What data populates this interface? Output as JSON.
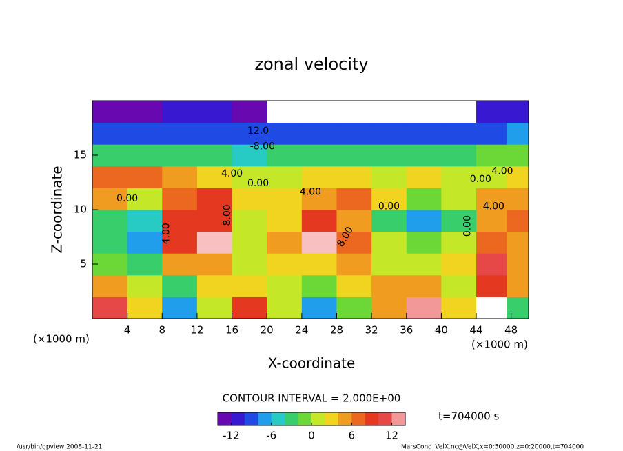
{
  "chart_data": {
    "type": "heatmap",
    "title": "zonal velocity",
    "x_label": "X-coordinate",
    "y_label": "Z-coordinate",
    "x_unit": "(×1000 m)",
    "y_unit": "(×1000 m)",
    "x": [
      2,
      6,
      10,
      14,
      18,
      22,
      26,
      30,
      34,
      38,
      42,
      46,
      49
    ],
    "y": [
      1,
      3,
      5,
      7,
      9,
      11,
      13,
      15,
      17,
      19
    ],
    "z": [
      [
        10,
        2,
        -8,
        0,
        8,
        0,
        -8,
        -2,
        4,
        12,
        2,
        -15,
        -4
      ],
      [
        4,
        0,
        -4,
        2,
        2,
        0,
        -2,
        2,
        4,
        4,
        0,
        8,
        4
      ],
      [
        -2,
        -4,
        4,
        4,
        0,
        2,
        2,
        4,
        0,
        0,
        2,
        10,
        4
      ],
      [
        -4,
        -8,
        8,
        14,
        0,
        4,
        14,
        6,
        0,
        -2,
        0,
        6,
        4
      ],
      [
        -4,
        -6,
        8,
        8,
        0,
        2,
        8,
        4,
        -4,
        -8,
        -4,
        4,
        6
      ],
      [
        4,
        0,
        6,
        8,
        2,
        2,
        4,
        6,
        2,
        -2,
        0,
        4,
        4
      ],
      [
        6,
        6,
        4,
        2,
        0,
        0,
        2,
        2,
        0,
        2,
        0,
        0,
        2
      ],
      [
        -4,
        -4,
        -4,
        -4,
        -5,
        -4,
        -4,
        -4,
        -4,
        -4,
        -4,
        -2,
        -2
      ],
      [
        -10,
        -10,
        -10,
        -9,
        -9,
        -10,
        -10,
        -9,
        -9,
        -9,
        -10,
        -9,
        -8
      ],
      [
        -14,
        -13,
        -11,
        -12,
        -14,
        -16,
        -16,
        -16,
        -16,
        -16,
        -16,
        -12,
        -12
      ]
    ],
    "xlim": [
      0,
      50
    ],
    "ylim": [
      0,
      20
    ],
    "xticks": [
      4,
      8,
      12,
      16,
      20,
      24,
      28,
      32,
      36,
      40,
      44,
      48
    ],
    "yticks": [
      5,
      10,
      15
    ],
    "clim": [
      -14,
      14
    ],
    "levels": [
      -14,
      -12,
      -10,
      -8,
      -6,
      -4,
      -2,
      0,
      2,
      4,
      6,
      8,
      10,
      12
    ],
    "colorbar_ticks": [
      -12,
      -6,
      0,
      6,
      12
    ],
    "colormap": [
      "#8000a0",
      "#2020e0",
      "#20c8f0",
      "#40d040",
      "#f0f020",
      "#f08020",
      "#e02020",
      "#f8c0c0"
    ],
    "annotations": [
      "12.0",
      "-8.00",
      "4.00",
      "0.00",
      "4.00",
      "0.00",
      "8.00",
      "4.00",
      "8.00",
      "0.00",
      "4.00",
      "0.00",
      "4.00",
      "0.00"
    ],
    "contour_interval_text": "CONTOUR INTERVAL = 2.000E+00",
    "time_text": "t=704000 s",
    "footer_left": "/usr/bin/gpview  2008-11-21",
    "footer_right": "MarsCond_VelX.nc@VelX,x=0:50000,z=0:20000,t=704000"
  }
}
